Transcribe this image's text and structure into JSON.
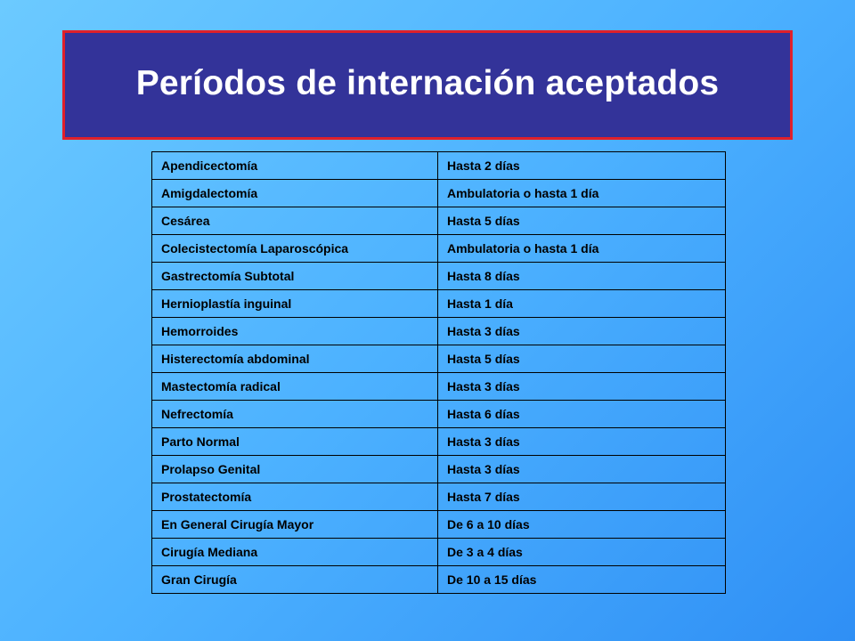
{
  "slide": {
    "title": "Períodos de internación aceptados"
  },
  "colors": {
    "title_background": "#333399",
    "title_border": "#e0202a",
    "title_text": "#ffffff",
    "background_light": "#6ccaff",
    "background_dark": "#2f8ff5"
  },
  "table": {
    "rows": [
      [
        "Apendicectomía",
        "Hasta 2 días"
      ],
      [
        "Amigdalectomía",
        "Ambulatoria o hasta 1 día"
      ],
      [
        "Cesárea",
        "Hasta 5 días"
      ],
      [
        "Colecistectomía Laparoscópica",
        "Ambulatoria o hasta 1 día"
      ],
      [
        "Gastrectomía Subtotal",
        "Hasta 8 días"
      ],
      [
        "Hernioplastía inguinal",
        "Hasta 1 día"
      ],
      [
        "Hemorroides",
        "Hasta 3 días"
      ],
      [
        "Histerectomía abdominal",
        "Hasta 5 días"
      ],
      [
        "Mastectomía radical",
        "Hasta 3 días"
      ],
      [
        "Nefrectomía",
        "Hasta 6 días"
      ],
      [
        "Parto Normal",
        "Hasta 3 días"
      ],
      [
        "Prolapso Genital",
        "Hasta 3 días"
      ],
      [
        "Prostatectomía",
        "Hasta 7 días"
      ],
      [
        "En General Cirugía Mayor",
        "De 6 a 10 días"
      ],
      [
        "Cirugía Mediana",
        "De 3 a 4 días"
      ],
      [
        "Gran Cirugía",
        "De 10 a 15 días"
      ]
    ]
  }
}
